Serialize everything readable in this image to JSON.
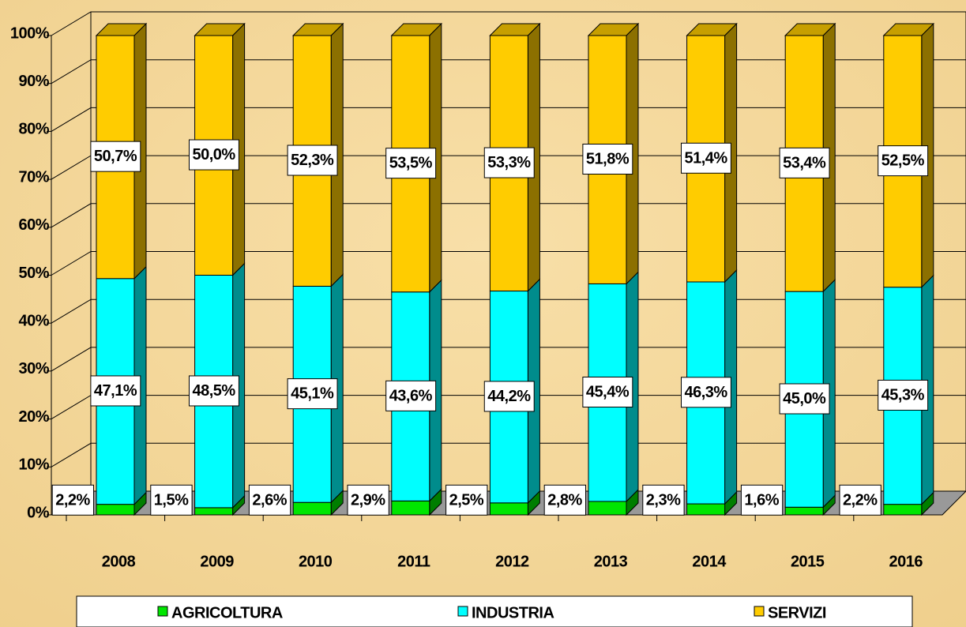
{
  "chart_data": {
    "type": "bar3d_stacked",
    "categories": [
      "2008",
      "2009",
      "2010",
      "2011",
      "2012",
      "2013",
      "2014",
      "2015",
      "2016"
    ],
    "series": [
      {
        "name": "AGRICOLTURA",
        "color": "#00e600",
        "values": [
          2.2,
          1.5,
          2.6,
          2.9,
          2.5,
          2.8,
          2.3,
          1.6,
          2.2
        ],
        "value_labels": [
          "2,2%",
          "1,5%",
          "2,6%",
          "2,9%",
          "2,5%",
          "2,8%",
          "2,3%",
          "1,6%",
          "2,2%"
        ]
      },
      {
        "name": "INDUSTRIA",
        "color": "#00ffff",
        "values": [
          47.1,
          48.5,
          45.1,
          43.6,
          44.2,
          45.4,
          46.3,
          45.0,
          45.3
        ],
        "value_labels": [
          "47,1%",
          "48,5%",
          "45,1%",
          "43,6%",
          "44,2%",
          "45,4%",
          "46,3%",
          "45,0%",
          "45,3%"
        ]
      },
      {
        "name": "SERVIZI",
        "color": "#ffcc00",
        "values": [
          50.7,
          50.0,
          52.3,
          53.5,
          53.3,
          51.8,
          51.4,
          53.4,
          52.5
        ],
        "value_labels": [
          "50,7%",
          "50,0%",
          "52,3%",
          "53,5%",
          "53,3%",
          "51,8%",
          "51,4%",
          "53,4%",
          "52,5%"
        ]
      }
    ],
    "ylim": [
      0,
      100
    ],
    "yticks": [
      {
        "value": 0,
        "label": "0%"
      },
      {
        "value": 10,
        "label": "10%"
      },
      {
        "value": 20,
        "label": "20%"
      },
      {
        "value": 30,
        "label": "30%"
      },
      {
        "value": 40,
        "label": "40%"
      },
      {
        "value": 50,
        "label": "50%"
      },
      {
        "value": 60,
        "label": "60%"
      },
      {
        "value": 70,
        "label": "70%"
      },
      {
        "value": 80,
        "label": "80%"
      },
      {
        "value": 90,
        "label": "90%"
      },
      {
        "value": 100,
        "label": "100%"
      }
    ],
    "grid": true,
    "legend": "bottom"
  }
}
